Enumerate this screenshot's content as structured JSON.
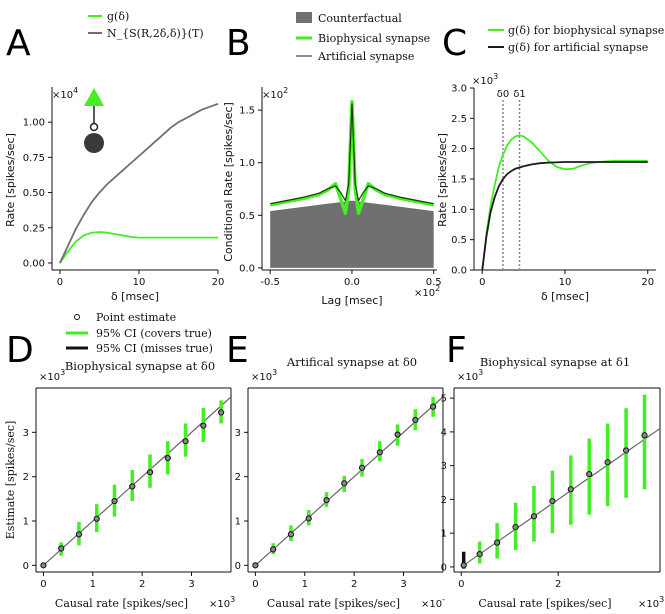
{
  "colors": {
    "green": "#44ee22",
    "gray": "#707070",
    "dark": "#1a1a1a",
    "fill_gray": "#6f7070",
    "dark_green": "#1b3a10",
    "dotted": "#888888"
  },
  "panels": {
    "A": {
      "letter": "A",
      "legend": [
        "g(δ)",
        "N_{S(R,2δ,δ)}(T)"
      ]
    },
    "B": {
      "letter": "B",
      "legend": [
        "Counterfactual",
        "Biophysical synapse",
        "Artificial synapse"
      ]
    },
    "C": {
      "letter": "C",
      "legend": [
        "g(δ) for biophysical synapse",
        "g(δ) for artificial synapse"
      ]
    },
    "D": {
      "letter": "D",
      "legend": [
        "Point estimate",
        "95% CI (covers true)",
        "95% CI (misses true)"
      ]
    },
    "E": {
      "letter": "E"
    },
    "F": {
      "letter": "F"
    }
  },
  "chart_data": [
    {
      "id": "A",
      "type": "line",
      "xlabel": "δ [msec]",
      "ylabel": "Rate [spikes/sec]",
      "multiplier": "×10^4",
      "xlim": [
        -1,
        20
      ],
      "ylim": [
        -0.05,
        1.25
      ],
      "xticks": [
        0,
        10,
        20
      ],
      "yticks": [
        0.0,
        0.25,
        0.5,
        0.75,
        1.0
      ],
      "ytick_labels": [
        "0.00",
        "0.25",
        "0.50",
        "0.75",
        "1.00"
      ],
      "series": [
        {
          "name": "g(δ)",
          "color": "green",
          "x": [
            0,
            1,
            2,
            3,
            4,
            5,
            6,
            7,
            8,
            9,
            10,
            12,
            14,
            16,
            18,
            20
          ],
          "y": [
            0,
            0.08,
            0.15,
            0.195,
            0.215,
            0.22,
            0.215,
            0.205,
            0.195,
            0.185,
            0.18,
            0.18,
            0.18,
            0.18,
            0.18,
            0.18
          ]
        },
        {
          "name": "N_S(R,2δ,δ)(T)",
          "color": "gray",
          "x": [
            0,
            1,
            2,
            3,
            4,
            5,
            6,
            7,
            8,
            9,
            10,
            11,
            12,
            13,
            14,
            15,
            16,
            17,
            18,
            19,
            20
          ],
          "y": [
            0,
            0.12,
            0.24,
            0.34,
            0.43,
            0.5,
            0.56,
            0.61,
            0.66,
            0.71,
            0.76,
            0.81,
            0.86,
            0.91,
            0.96,
            1.0,
            1.03,
            1.06,
            1.09,
            1.11,
            1.13
          ]
        }
      ]
    },
    {
      "id": "B",
      "type": "area",
      "xlabel": "Lag [msec]",
      "ylabel": "Conditional Rate [spikes/sec]",
      "ymultiplier": "×10^2",
      "xmultiplier": "×10^2",
      "xlim": [
        -0.55,
        0.52
      ],
      "ylim": [
        -0.02,
        1.72
      ],
      "xticks": [
        -0.5,
        0.0,
        0.5
      ],
      "xtick_labels": [
        "-0.5",
        "0.0",
        "0.5"
      ],
      "yticks": [
        0.0,
        0.5,
        1.0,
        1.5
      ],
      "ytick_labels": [
        "0.0",
        "0.5",
        "1.0",
        "1.5"
      ],
      "series": [
        {
          "name": "Counterfactual",
          "color": "fill_gray",
          "x": [
            -0.5,
            -0.4,
            -0.3,
            -0.2,
            -0.1,
            0.0,
            0.1,
            0.2,
            0.3,
            0.4,
            0.5
          ],
          "y": [
            0.54,
            0.56,
            0.58,
            0.6,
            0.62,
            0.64,
            0.62,
            0.6,
            0.58,
            0.56,
            0.54
          ]
        },
        {
          "name": "Biophysical synapse",
          "color": "green",
          "x": [
            -0.5,
            -0.4,
            -0.3,
            -0.2,
            -0.15,
            -0.1,
            -0.07,
            -0.04,
            -0.02,
            0.0,
            0.02,
            0.04,
            0.07,
            0.1,
            0.15,
            0.2,
            0.3,
            0.4,
            0.5
          ],
          "y": [
            0.6,
            0.63,
            0.66,
            0.7,
            0.74,
            0.8,
            0.66,
            0.52,
            0.75,
            1.58,
            0.75,
            0.52,
            0.66,
            0.8,
            0.74,
            0.7,
            0.66,
            0.63,
            0.6
          ]
        },
        {
          "name": "Artificial synapse",
          "color": "dark",
          "x": [
            -0.5,
            -0.4,
            -0.3,
            -0.2,
            -0.15,
            -0.1,
            -0.07,
            -0.04,
            -0.02,
            0.0,
            0.02,
            0.04,
            0.07,
            0.1,
            0.15,
            0.2,
            0.3,
            0.4,
            0.5
          ],
          "y": [
            0.61,
            0.64,
            0.67,
            0.71,
            0.75,
            0.78,
            0.72,
            0.64,
            0.8,
            1.56,
            0.8,
            0.64,
            0.72,
            0.78,
            0.75,
            0.71,
            0.67,
            0.64,
            0.61
          ]
        }
      ]
    },
    {
      "id": "C",
      "type": "line",
      "xlabel": "δ [msec]",
      "ylabel": "Rate [spikes/sec]",
      "multiplier": "×10^3",
      "xlim": [
        -1,
        21
      ],
      "ylim": [
        0,
        3.0
      ],
      "xticks": [
        0,
        10,
        20
      ],
      "yticks": [
        0.0,
        0.5,
        1.0,
        1.5,
        2.0,
        2.5,
        3.0
      ],
      "ytick_labels": [
        "0.0",
        "0.5",
        "1.0",
        "1.5",
        "2.0",
        "2.5",
        "3.0"
      ],
      "vlines": [
        {
          "x": 2.5,
          "label": "δ0"
        },
        {
          "x": 4.5,
          "label": "δ1"
        }
      ],
      "series": [
        {
          "name": "g(δ) for biophysical synapse",
          "color": "green",
          "x": [
            0,
            0.5,
            1,
            1.5,
            2,
            2.5,
            3,
            3.5,
            4,
            4.5,
            5,
            6,
            7,
            8,
            9,
            10,
            11,
            12,
            13,
            14,
            16,
            18,
            20
          ],
          "y": [
            0,
            0.6,
            1.05,
            1.4,
            1.7,
            1.9,
            2.05,
            2.15,
            2.2,
            2.22,
            2.2,
            2.1,
            1.95,
            1.8,
            1.7,
            1.66,
            1.67,
            1.72,
            1.76,
            1.78,
            1.8,
            1.8,
            1.8
          ]
        },
        {
          "name": "g(δ) for artificial synapse",
          "color": "dark",
          "x": [
            0,
            0.5,
            1,
            1.5,
            2,
            2.5,
            3,
            3.5,
            4,
            5,
            6,
            7,
            8,
            10,
            12,
            14,
            16,
            18,
            20
          ],
          "y": [
            0,
            0.55,
            0.95,
            1.2,
            1.38,
            1.5,
            1.58,
            1.63,
            1.67,
            1.71,
            1.74,
            1.76,
            1.77,
            1.78,
            1.78,
            1.78,
            1.78,
            1.78,
            1.78
          ]
        }
      ]
    },
    {
      "id": "D",
      "type": "scatter",
      "title": "Biophysical synapse at δ0",
      "xlabel": "Causal rate [spikes/sec]",
      "ylabel": "Estimate [spikes/sec]",
      "xmultiplier": "×10^3",
      "ymultiplier": "×10^3",
      "xlim": [
        -0.15,
        3.8
      ],
      "ylim": [
        -0.15,
        4.0
      ],
      "xticks": [
        0,
        1,
        2,
        3
      ],
      "yticks": [
        0,
        1,
        2,
        3
      ],
      "x": [
        0,
        0.36,
        0.72,
        1.08,
        1.44,
        1.8,
        2.16,
        2.52,
        2.88,
        3.24,
        3.6
      ],
      "y": [
        0,
        0.38,
        0.7,
        1.05,
        1.45,
        1.78,
        2.1,
        2.42,
        2.8,
        3.15,
        3.45
      ],
      "ci_low": [
        0,
        0.22,
        0.45,
        0.75,
        1.1,
        1.45,
        1.75,
        2.05,
        2.45,
        2.78,
        3.2
      ],
      "ci_high": [
        0,
        0.52,
        0.98,
        1.38,
        1.82,
        2.15,
        2.5,
        2.8,
        3.2,
        3.55,
        3.72
      ],
      "covers": [
        true,
        true,
        true,
        true,
        true,
        true,
        true,
        true,
        true,
        true,
        true
      ]
    },
    {
      "id": "E",
      "type": "scatter",
      "title": "Artifical synapse at δ0",
      "xlabel": "Causal rate [spikes/sec]",
      "ylabel": "",
      "xmultiplier": "×10^-",
      "ymultiplier": "×10^3",
      "xlim": [
        -0.15,
        3.8
      ],
      "ylim": [
        -0.15,
        4.0
      ],
      "xticks": [
        0,
        1,
        2,
        3
      ],
      "yticks": [
        0,
        1,
        2,
        3
      ],
      "x": [
        0,
        0.36,
        0.72,
        1.08,
        1.44,
        1.8,
        2.16,
        2.52,
        2.88,
        3.24,
        3.6
      ],
      "y": [
        0,
        0.36,
        0.7,
        1.06,
        1.47,
        1.85,
        2.2,
        2.55,
        2.95,
        3.28,
        3.58
      ],
      "ci_low": [
        0,
        0.25,
        0.55,
        0.9,
        1.32,
        1.65,
        2.0,
        2.35,
        2.7,
        3.05,
        3.35
      ],
      "ci_high": [
        0,
        0.5,
        0.9,
        1.25,
        1.65,
        2.02,
        2.4,
        2.8,
        3.18,
        3.52,
        3.8
      ],
      "covers": [
        true,
        true,
        true,
        true,
        true,
        true,
        true,
        true,
        true,
        true,
        true
      ]
    },
    {
      "id": "F",
      "type": "scatter",
      "title": "Biophysical synapse at δ1",
      "xlabel": "Causal rate [spikes/sec]",
      "ylabel": "",
      "xmultiplier": "×10^3",
      "ymultiplier": "×10^3",
      "xlim": [
        -0.15,
        4.1
      ],
      "ylim": [
        -0.15,
        5.3
      ],
      "xticks": [
        0,
        2
      ],
      "yticks": [
        0,
        1,
        2,
        3,
        4,
        5
      ],
      "x": [
        0.05,
        0.38,
        0.74,
        1.12,
        1.5,
        1.88,
        2.26,
        2.64,
        3.02,
        3.4,
        3.78
      ],
      "y": [
        0.05,
        0.38,
        0.72,
        1.18,
        1.5,
        1.95,
        2.3,
        2.75,
        3.1,
        3.45,
        3.9
      ],
      "ci_low": [
        -0.05,
        0.1,
        0.25,
        0.5,
        0.75,
        1.0,
        1.25,
        1.55,
        1.8,
        2.05,
        2.3
      ],
      "ci_high": [
        0.45,
        0.75,
        1.3,
        1.9,
        2.4,
        2.85,
        3.3,
        3.8,
        4.25,
        4.7,
        5.1
      ],
      "covers": [
        false,
        true,
        true,
        true,
        true,
        true,
        true,
        true,
        true,
        true,
        true
      ]
    }
  ]
}
